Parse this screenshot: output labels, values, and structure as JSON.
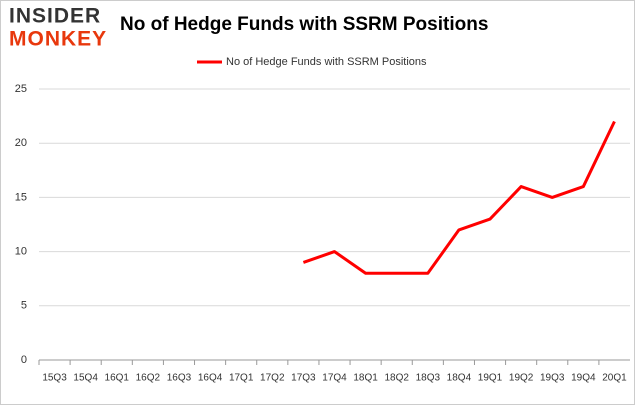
{
  "chart_data": {
    "type": "line",
    "logo": [
      "INSIDER",
      "MONKEY"
    ],
    "title": "No of Hedge Funds with SSRM Positions",
    "categories": [
      "15Q3",
      "15Q4",
      "16Q1",
      "16Q2",
      "16Q3",
      "16Q4",
      "17Q1",
      "17Q2",
      "17Q3",
      "17Q4",
      "18Q1",
      "18Q2",
      "18Q3",
      "18Q4",
      "19Q1",
      "19Q2",
      "19Q3",
      "19Q4",
      "20Q1"
    ],
    "series": [
      {
        "name": "No of Hedge Funds with SSRM Positions",
        "color": "#ff0000",
        "values": [
          null,
          null,
          null,
          null,
          null,
          null,
          null,
          null,
          9,
          10,
          8,
          8,
          8,
          12,
          13,
          16,
          15,
          16,
          22
        ]
      }
    ],
    "ylim": [
      0,
      25
    ],
    "yticks": [
      0,
      5,
      10,
      15,
      20,
      25
    ],
    "grid": true,
    "legend": "top"
  }
}
